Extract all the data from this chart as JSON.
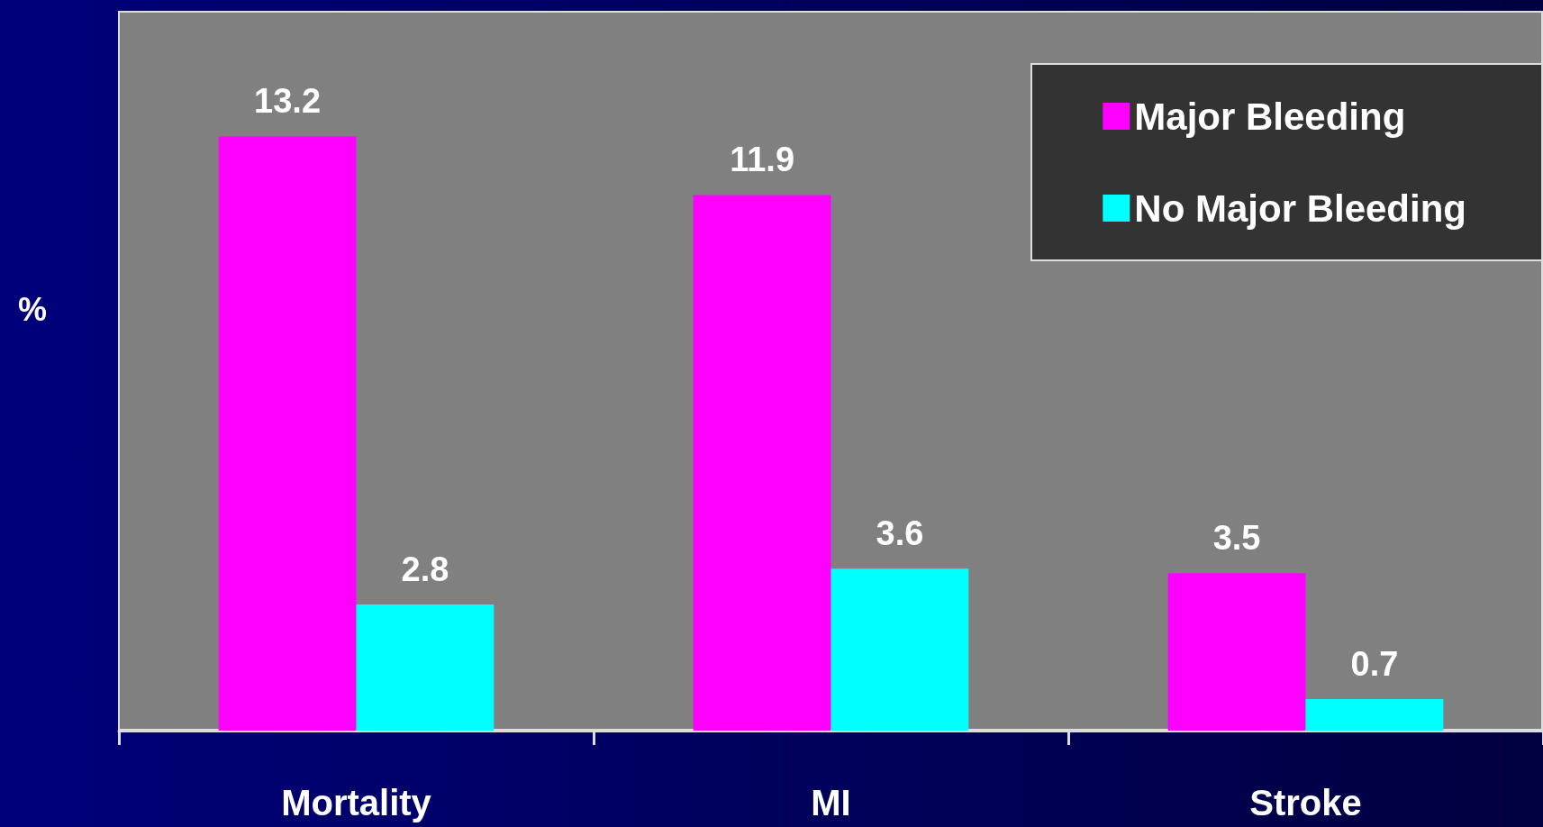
{
  "chart_data": {
    "type": "bar",
    "ylabel": "%",
    "categories": [
      "Mortality",
      "MI",
      "Stroke"
    ],
    "series": [
      {
        "name": "Major Bleeding",
        "color": "#ff00ff",
        "values": [
          13.2,
          11.9,
          3.5
        ]
      },
      {
        "name": "No Major Bleeding",
        "color": "#00ffff",
        "values": [
          2.8,
          3.6,
          0.7
        ]
      }
    ],
    "data_labels": true,
    "grid": false,
    "legend": "top right"
  }
}
